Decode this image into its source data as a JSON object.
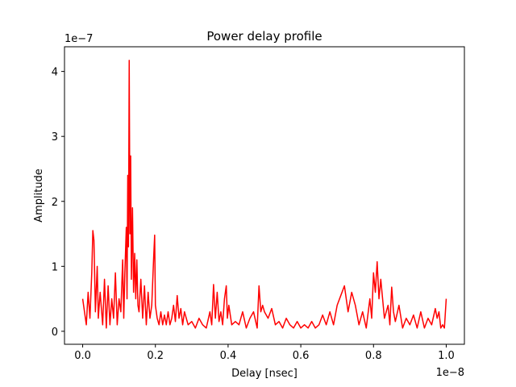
{
  "chart_data": {
    "type": "line",
    "title": "Power delay profile",
    "xlabel": "Delay [nsec]",
    "ylabel": "Amplitude",
    "x_offset_text": "1e−8",
    "y_offset_text": "1e−7",
    "xlim": [
      -0.05,
      1.05
    ],
    "ylim": [
      -0.2,
      4.38
    ],
    "x_ticks": [
      0.0,
      0.2,
      0.4,
      0.6,
      0.8,
      1.0
    ],
    "x_tick_labels": [
      "0.0",
      "0.2",
      "0.4",
      "0.6",
      "0.8",
      "1.0"
    ],
    "y_ticks": [
      0,
      1,
      2,
      3,
      4
    ],
    "y_tick_labels": [
      "0",
      "1",
      "2",
      "3",
      "4"
    ],
    "grid": false,
    "series": [
      {
        "color": "#ff0000",
        "x": [
          0.0,
          0.005,
          0.01,
          0.015,
          0.02,
          0.025,
          0.028,
          0.031,
          0.035,
          0.04,
          0.043,
          0.048,
          0.055,
          0.06,
          0.065,
          0.07,
          0.075,
          0.08,
          0.085,
          0.09,
          0.095,
          0.1,
          0.105,
          0.11,
          0.113,
          0.116,
          0.12,
          0.122,
          0.124,
          0.126,
          0.128,
          0.13,
          0.132,
          0.134,
          0.137,
          0.14,
          0.143,
          0.146,
          0.149,
          0.152,
          0.155,
          0.16,
          0.165,
          0.17,
          0.175,
          0.18,
          0.185,
          0.19,
          0.195,
          0.198,
          0.2,
          0.205,
          0.21,
          0.215,
          0.22,
          0.225,
          0.23,
          0.235,
          0.24,
          0.245,
          0.25,
          0.255,
          0.26,
          0.265,
          0.27,
          0.275,
          0.28,
          0.29,
          0.3,
          0.31,
          0.32,
          0.33,
          0.34,
          0.35,
          0.355,
          0.36,
          0.365,
          0.37,
          0.375,
          0.38,
          0.385,
          0.39,
          0.395,
          0.398,
          0.402,
          0.41,
          0.42,
          0.43,
          0.44,
          0.45,
          0.46,
          0.47,
          0.48,
          0.485,
          0.49,
          0.495,
          0.5,
          0.51,
          0.52,
          0.53,
          0.54,
          0.55,
          0.56,
          0.57,
          0.58,
          0.59,
          0.6,
          0.61,
          0.62,
          0.63,
          0.64,
          0.65,
          0.66,
          0.67,
          0.68,
          0.69,
          0.7,
          0.71,
          0.72,
          0.725,
          0.73,
          0.74,
          0.75,
          0.76,
          0.77,
          0.78,
          0.79,
          0.795,
          0.8,
          0.805,
          0.81,
          0.815,
          0.82,
          0.83,
          0.84,
          0.845,
          0.85,
          0.855,
          0.86,
          0.87,
          0.88,
          0.89,
          0.9,
          0.91,
          0.92,
          0.93,
          0.94,
          0.95,
          0.96,
          0.97,
          0.975,
          0.98,
          0.985,
          0.99,
          0.995,
          1.0
        ],
        "y": [
          0.5,
          0.3,
          0.1,
          0.6,
          0.2,
          0.9,
          1.55,
          1.4,
          0.3,
          1.0,
          0.2,
          0.6,
          0.1,
          0.8,
          0.05,
          0.7,
          0.1,
          0.5,
          0.2,
          0.9,
          0.1,
          0.5,
          0.3,
          1.1,
          0.2,
          0.9,
          1.6,
          0.5,
          2.4,
          1.3,
          4.17,
          1.5,
          2.7,
          0.8,
          1.9,
          0.6,
          1.2,
          0.5,
          1.1,
          0.4,
          0.3,
          0.8,
          0.2,
          0.7,
          0.1,
          0.6,
          0.2,
          0.4,
          1.1,
          1.48,
          0.4,
          0.2,
          0.1,
          0.3,
          0.1,
          0.25,
          0.1,
          0.3,
          0.1,
          0.2,
          0.4,
          0.15,
          0.55,
          0.2,
          0.35,
          0.1,
          0.3,
          0.1,
          0.15,
          0.05,
          0.2,
          0.1,
          0.05,
          0.3,
          0.1,
          0.72,
          0.2,
          0.6,
          0.15,
          0.3,
          0.1,
          0.5,
          0.7,
          0.2,
          0.4,
          0.1,
          0.15,
          0.1,
          0.3,
          0.05,
          0.2,
          0.3,
          0.05,
          0.7,
          0.3,
          0.4,
          0.3,
          0.2,
          0.35,
          0.1,
          0.15,
          0.05,
          0.2,
          0.1,
          0.05,
          0.15,
          0.05,
          0.1,
          0.05,
          0.15,
          0.05,
          0.1,
          0.25,
          0.1,
          0.3,
          0.1,
          0.4,
          0.55,
          0.7,
          0.5,
          0.3,
          0.6,
          0.4,
          0.1,
          0.3,
          0.05,
          0.5,
          0.2,
          0.9,
          0.6,
          1.07,
          0.5,
          0.8,
          0.2,
          0.4,
          0.1,
          0.68,
          0.3,
          0.15,
          0.4,
          0.05,
          0.2,
          0.1,
          0.25,
          0.05,
          0.3,
          0.05,
          0.2,
          0.1,
          0.35,
          0.2,
          0.3,
          0.05,
          0.1,
          0.05,
          0.5
        ]
      }
    ]
  }
}
